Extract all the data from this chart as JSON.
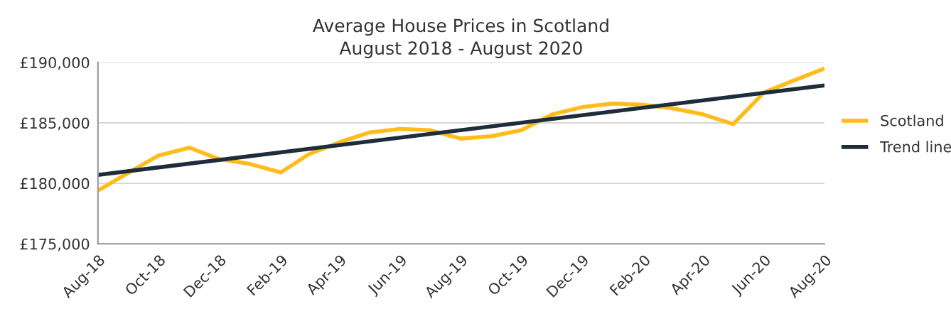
{
  "chart_data": {
    "type": "line",
    "title": "Average House Prices in Scotland\nAugust 2018 - August 2020",
    "x": [
      "2018-08",
      "2018-09",
      "2018-10",
      "2018-11",
      "2018-12",
      "2019-01",
      "2019-02",
      "2019-03",
      "2019-04",
      "2019-05",
      "2019-06",
      "2019-07",
      "2019-08",
      "2019-09",
      "2019-10",
      "2019-11",
      "2019-12",
      "2020-01",
      "2020-02",
      "2020-03",
      "2020-04",
      "2020-05",
      "2020-06",
      "2020-07",
      "2020-08"
    ],
    "series": [
      {
        "name": "Scotland",
        "color": "#ffbc1a",
        "values": [
          179400,
          180900,
          182300,
          182950,
          182000,
          181600,
          180900,
          182400,
          183400,
          184200,
          184500,
          184400,
          183700,
          183900,
          184400,
          185700,
          186300,
          186600,
          186500,
          186200,
          185700,
          184900,
          187500,
          188500,
          189500
        ]
      },
      {
        "name": "Trend line",
        "color": "#1e2d3b",
        "x": [
          "2018-08",
          "2020-08"
        ],
        "values": [
          180700,
          188100
        ]
      }
    ],
    "xlim": [
      "2018-08",
      "2020-08"
    ],
    "xticks": [
      {
        "value": "2018-08",
        "label": "Aug-18"
      },
      {
        "value": "2018-10",
        "label": "Oct-18"
      },
      {
        "value": "2018-12",
        "label": "Dec-18"
      },
      {
        "value": "2019-02",
        "label": "Feb-19"
      },
      {
        "value": "2019-04",
        "label": "Apr-19"
      },
      {
        "value": "2019-06",
        "label": "Jun-19"
      },
      {
        "value": "2019-08",
        "label": "Aug-19"
      },
      {
        "value": "2019-10",
        "label": "Oct-19"
      },
      {
        "value": "2019-12",
        "label": "Dec-19"
      },
      {
        "value": "2020-02",
        "label": "Feb-20"
      },
      {
        "value": "2020-04",
        "label": "Apr-20"
      },
      {
        "value": "2020-06",
        "label": "Jun-20"
      },
      {
        "value": "2020-08",
        "label": "Aug-20"
      }
    ],
    "ylim": [
      175000,
      190000
    ],
    "yticks": [
      {
        "value": 175000,
        "label": "£175,000"
      },
      {
        "value": 180000,
        "label": "£180,000"
      },
      {
        "value": 185000,
        "label": "£185,000"
      },
      {
        "value": 190000,
        "label": "£190,000"
      }
    ],
    "grid": "y",
    "legend": "right",
    "marker": "none",
    "line_style": "solid"
  }
}
